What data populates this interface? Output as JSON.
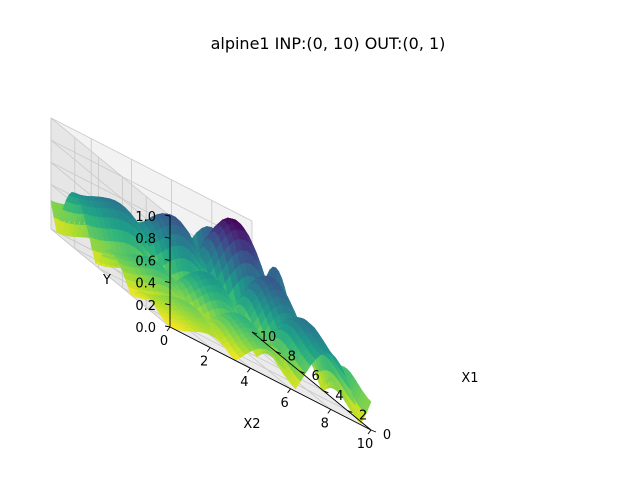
{
  "chart_data": {
    "type": "surface3d",
    "title": "alpine1  INP:(0, 10)  OUT:(0, 1)",
    "function": "alpine1",
    "xlabel": "X1",
    "ylabel": "X2",
    "zlabel": "Y",
    "xlim": [
      0,
      10
    ],
    "ylim": [
      0,
      10
    ],
    "zlim": [
      0,
      1
    ],
    "x_ticks": [
      "0",
      "2",
      "4",
      "6",
      "8",
      "10"
    ],
    "y_ticks": [
      "0",
      "2",
      "4",
      "6",
      "8",
      "10"
    ],
    "z_ticks": [
      "0.0",
      "0.2",
      "0.4",
      "0.6",
      "0.8",
      "1.0"
    ],
    "colormap": "viridis_r",
    "grid": true
  },
  "colors": {
    "pane_back": "#f2f2f2",
    "pane_side": "#e6e6e6",
    "pane_floor": "#ebebeb",
    "gridline": "#c8c8c8"
  }
}
